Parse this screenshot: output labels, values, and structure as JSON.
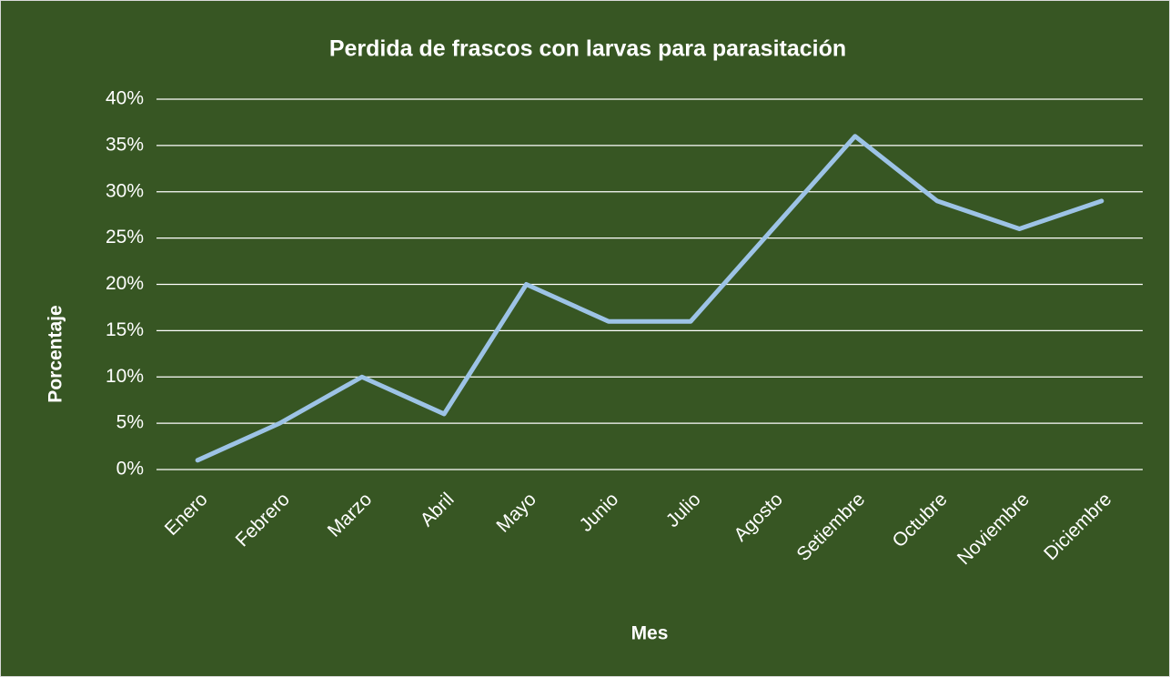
{
  "chart_data": {
    "type": "line",
    "title": "Perdida de frascos con larvas para parasitación",
    "x_label": "Mes",
    "y_label": "Porcentaje",
    "categories": [
      "Enero",
      "Febrero",
      "Marzo",
      "Abril",
      "Mayo",
      "Junio",
      "Julio",
      "Agosto",
      "Setiembre",
      "Octubre",
      "Noviembre",
      "Diciembre"
    ],
    "series": [
      {
        "name": "Porcentaje",
        "color": "#9dc3e6",
        "values": [
          1,
          5,
          10,
          6,
          20,
          16,
          16,
          26,
          36,
          29,
          26,
          29
        ]
      }
    ],
    "ylim": [
      0,
      40
    ],
    "yticks": [
      {
        "value": 0,
        "label": "0%"
      },
      {
        "value": 5,
        "label": "5%"
      },
      {
        "value": 10,
        "label": "10%"
      },
      {
        "value": 15,
        "label": "15%"
      },
      {
        "value": 20,
        "label": "20%"
      },
      {
        "value": 25,
        "label": "25%"
      },
      {
        "value": 30,
        "label": "30%"
      },
      {
        "value": 35,
        "label": "35%"
      },
      {
        "value": 40,
        "label": "40%"
      }
    ],
    "grid": true
  }
}
